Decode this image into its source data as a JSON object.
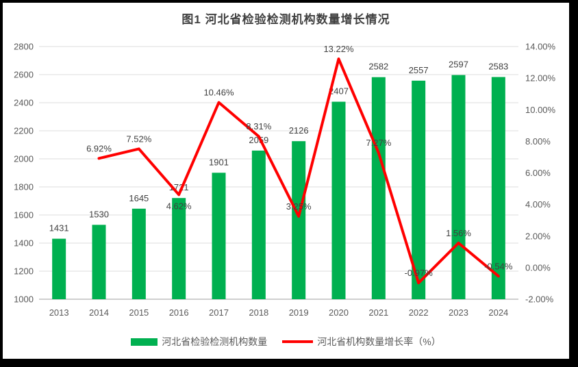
{
  "chart_data": {
    "type": "combo-bar-line",
    "title": "图1 河北省检验检测机构数量增长情况",
    "categories": [
      "2013",
      "2014",
      "2015",
      "2016",
      "2017",
      "2018",
      "2019",
      "2020",
      "2021",
      "2022",
      "2023",
      "2024"
    ],
    "series": [
      {
        "name": "河北省检验检测机构数量",
        "type": "bar",
        "axis": "left",
        "color": "#00B050",
        "values": [
          1431,
          1530,
          1645,
          1721,
          1901,
          2059,
          2126,
          2407,
          2582,
          2557,
          2597,
          2583
        ]
      },
      {
        "name": "河北省机构数量增长率（%）",
        "type": "line",
        "axis": "right",
        "color": "#FF0000",
        "values": [
          null,
          6.92,
          7.52,
          4.62,
          10.46,
          8.31,
          3.25,
          13.22,
          7.27,
          -0.97,
          1.56,
          -0.54
        ],
        "label_below_indices": [
          3
        ]
      }
    ],
    "left_axis": {
      "min": 1000,
      "max": 2800,
      "step": 200
    },
    "right_axis": {
      "min": -2,
      "max": 14,
      "step": 2,
      "decimals": 2,
      "suffix": "%"
    },
    "grid": true,
    "legend_position": "bottom"
  },
  "style": {
    "frame_border_color": "#000000",
    "background": "#ffffff",
    "gridline_color": "#dcdcdc",
    "axis_line_color": "#bfbfbf",
    "axis_text_color": "#595959",
    "data_label_color": "#404040",
    "title_color": "#404040"
  }
}
